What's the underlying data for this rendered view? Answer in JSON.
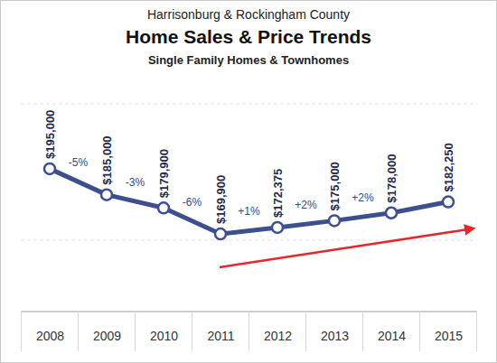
{
  "chart_data": {
    "type": "line",
    "title": "Home Sales & Price Trends",
    "supertitle": "Harrisonburg & Rockingham County",
    "subtitle": "Single Family Homes & Townhomes",
    "categories": [
      "2008",
      "2009",
      "2010",
      "2011",
      "2012",
      "2013",
      "2014",
      "2015"
    ],
    "values": [
      195000,
      185000,
      179900,
      169900,
      172375,
      175000,
      178000,
      182250
    ],
    "value_labels": [
      "$195,000",
      "$185,000",
      "$179,900",
      "$169,900",
      "$172,375",
      "$175,000",
      "$178,000",
      "$182,250"
    ],
    "data_labels": true,
    "color": "#3d4f8c",
    "marker": "circle",
    "ylim": [
      140000,
      220000
    ],
    "yticks": [
      140000,
      167500,
      220000
    ],
    "grid": true,
    "tick_labels": "x",
    "annotations": [
      {
        "text": "-5%",
        "from": "2008",
        "to": "2009"
      },
      {
        "text": "-3%",
        "from": "2009",
        "to": "2010"
      },
      {
        "text": "-6%",
        "from": "2010",
        "to": "2011"
      },
      {
        "text": "+1%",
        "from": "2011",
        "to": "2012"
      },
      {
        "text": "+2%",
        "from": "2012",
        "to": "2013"
      },
      {
        "text": "+2%",
        "from": "2013",
        "to": "2014"
      }
    ]
  }
}
